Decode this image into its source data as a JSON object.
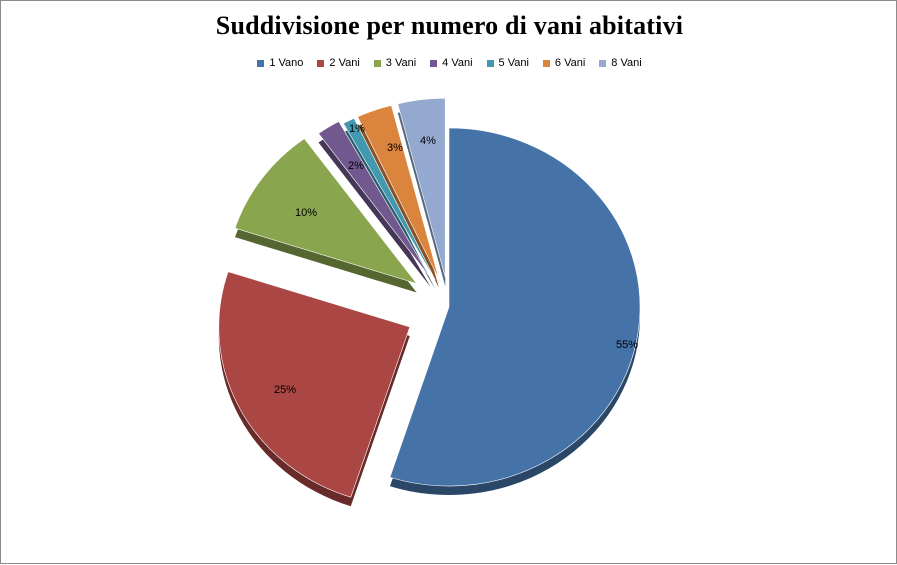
{
  "chart_data": {
    "type": "pie",
    "title": "Suddivisione per numero di vani abitativi",
    "categories": [
      "1 Vano",
      "2 Vani",
      "3 Vani",
      "4 Vani",
      "5 Vani",
      "6 Vani",
      "8 Vani"
    ],
    "values": [
      55,
      25,
      10,
      2,
      1,
      3,
      4
    ],
    "value_labels": [
      "55%",
      "25%",
      "10%",
      "2%",
      "1%",
      "3%",
      "4%"
    ],
    "colors": [
      "#4572A7",
      "#AA4643",
      "#89A54E",
      "#71588F",
      "#4198AF",
      "#DB843D",
      "#93A9CF"
    ],
    "exploded": true,
    "style": "3d",
    "legend_position": "top"
  }
}
